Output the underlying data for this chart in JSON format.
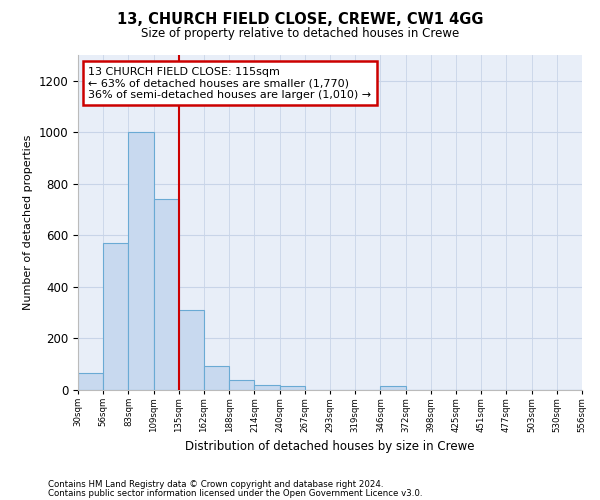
{
  "title": "13, CHURCH FIELD CLOSE, CREWE, CW1 4GG",
  "subtitle": "Size of property relative to detached houses in Crewe",
  "xlabel": "Distribution of detached houses by size in Crewe",
  "ylabel": "Number of detached properties",
  "footer_line1": "Contains HM Land Registry data © Crown copyright and database right 2024.",
  "footer_line2": "Contains public sector information licensed under the Open Government Licence v3.0.",
  "annotation_line1": "13 CHURCH FIELD CLOSE: 115sqm",
  "annotation_line2": "← 63% of detached houses are smaller (1,770)",
  "annotation_line3": "36% of semi-detached houses are larger (1,010) →",
  "bar_color": "#c8d9ef",
  "bar_edge_color": "#6aaad4",
  "vline_color": "#cc0000",
  "annotation_box_edgecolor": "#cc0000",
  "grid_color": "#c8d4e8",
  "background_color": "#e8eef8",
  "bin_labels": [
    "30sqm",
    "56sqm",
    "83sqm",
    "109sqm",
    "135sqm",
    "162sqm",
    "188sqm",
    "214sqm",
    "240sqm",
    "267sqm",
    "293sqm",
    "319sqm",
    "346sqm",
    "372sqm",
    "398sqm",
    "425sqm",
    "451sqm",
    "477sqm",
    "503sqm",
    "530sqm",
    "556sqm"
  ],
  "counts": [
    65,
    570,
    1000,
    740,
    310,
    95,
    40,
    20,
    15,
    0,
    0,
    0,
    15,
    0,
    0,
    0,
    0,
    0,
    0,
    0
  ],
  "vline_bin_index": 3,
  "ylim": [
    0,
    1300
  ],
  "yticks": [
    0,
    200,
    400,
    600,
    800,
    1000,
    1200
  ]
}
